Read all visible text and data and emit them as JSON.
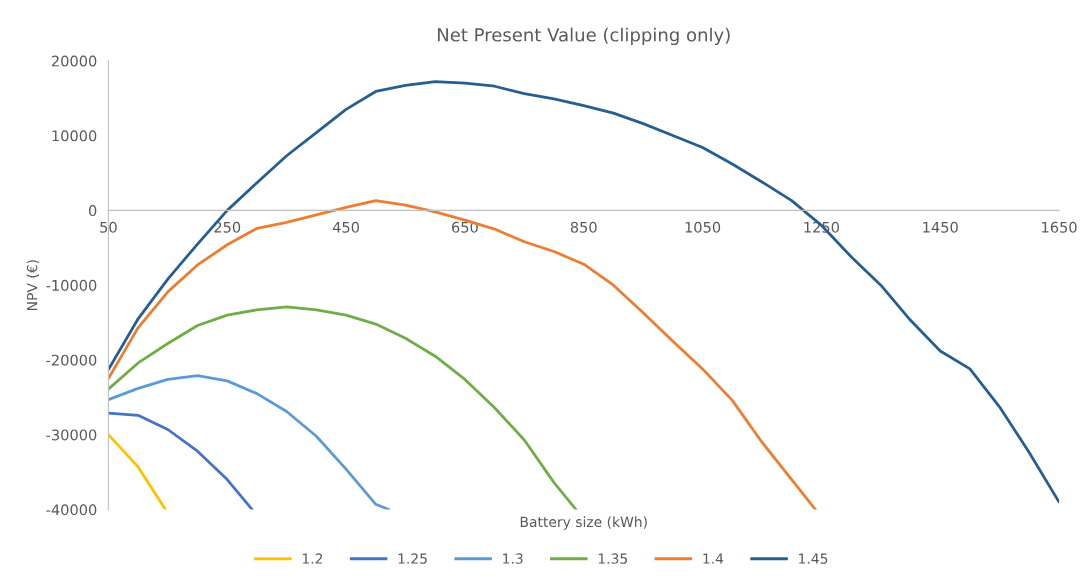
{
  "chart_data": {
    "type": "line",
    "title": "Net Present Value (clipping only)",
    "xlabel": "Battery size (kWh)",
    "ylabel": "NPV (€)",
    "xlim": [
      50,
      1650
    ],
    "xticks": [
      50,
      250,
      450,
      650,
      850,
      1050,
      1250,
      1450,
      1650
    ],
    "ylim": [
      -40000,
      20000
    ],
    "yticks": [
      -40000,
      -30000,
      -20000,
      -10000,
      0,
      10000,
      20000
    ],
    "grid": false,
    "legend": "bottom",
    "marker": "none",
    "line_style": "solid",
    "series": [
      {
        "name": "1.2",
        "color": "#ffc000",
        "x": [
          50,
          100,
          146
        ],
        "values": [
          -30000,
          -34300,
          -40000
        ]
      },
      {
        "name": "1.25",
        "color": "#4472c4",
        "x": [
          50,
          100,
          150,
          200,
          250,
          292
        ],
        "values": [
          -27100,
          -27400,
          -29300,
          -32200,
          -36000,
          -40000
        ]
      },
      {
        "name": "1.3",
        "color": "#5b9bd5",
        "x": [
          50,
          100,
          150,
          200,
          250,
          300,
          350,
          400,
          450,
          500,
          522
        ],
        "values": [
          -25300,
          -23800,
          -22600,
          -22100,
          -22800,
          -24500,
          -26900,
          -30200,
          -34600,
          -39300,
          -40000
        ]
      },
      {
        "name": "1.35",
        "color": "#70ad47",
        "x": [
          50,
          100,
          150,
          200,
          250,
          300,
          350,
          400,
          450,
          500,
          550,
          600,
          650,
          700,
          750,
          800,
          837
        ],
        "values": [
          -23900,
          -20400,
          -17800,
          -15400,
          -14000,
          -13300,
          -12900,
          -13300,
          -14000,
          -15200,
          -17100,
          -19500,
          -22600,
          -26400,
          -30700,
          -36400,
          -40000
        ]
      },
      {
        "name": "1.4",
        "color": "#ed7d31",
        "x": [
          50,
          100,
          150,
          200,
          250,
          300,
          350,
          400,
          450,
          500,
          550,
          600,
          650,
          700,
          750,
          800,
          850,
          900,
          950,
          1000,
          1050,
          1100,
          1150,
          1200,
          1240
        ],
        "values": [
          -22500,
          -15700,
          -10900,
          -7300,
          -4600,
          -2400,
          -1600,
          -600,
          400,
          1300,
          700,
          -200,
          -1300,
          -2500,
          -4200,
          -5500,
          -7200,
          -10000,
          -13700,
          -17500,
          -21200,
          -25400,
          -31000,
          -36000,
          -40000
        ]
      },
      {
        "name": "1.45",
        "color": "#255e91",
        "x": [
          50,
          100,
          150,
          200,
          250,
          300,
          350,
          400,
          450,
          500,
          550,
          600,
          650,
          700,
          750,
          800,
          850,
          900,
          950,
          1000,
          1050,
          1100,
          1150,
          1200,
          1250,
          1300,
          1350,
          1400,
          1450,
          1500,
          1550,
          1600,
          1650
        ],
        "values": [
          -21300,
          -14500,
          -9200,
          -4500,
          0,
          3700,
          7300,
          10400,
          13500,
          15900,
          16700,
          17200,
          17000,
          16600,
          15600,
          14900,
          14000,
          13000,
          11600,
          10000,
          8400,
          6200,
          3800,
          1300,
          -2000,
          -6200,
          -10000,
          -14700,
          -18800,
          -21200,
          -26300,
          -32400,
          -39000
        ]
      }
    ]
  }
}
